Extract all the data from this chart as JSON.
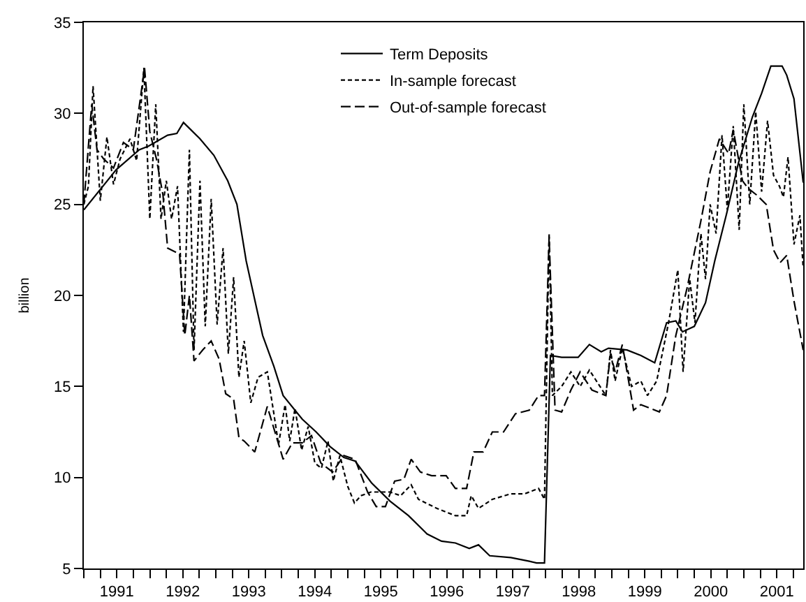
{
  "chart_data": {
    "type": "line",
    "ylabel": "billion",
    "xlim": [
      1991.0,
      2001.9
    ],
    "ylim": [
      5,
      35
    ],
    "xticks": [
      {
        "value": 1991.5,
        "label": "1991"
      },
      {
        "value": 1992.5,
        "label": "1992"
      },
      {
        "value": 1993.5,
        "label": "1993"
      },
      {
        "value": 1994.5,
        "label": "1994"
      },
      {
        "value": 1995.5,
        "label": "1995"
      },
      {
        "value": 1996.5,
        "label": "1996"
      },
      {
        "value": 1997.5,
        "label": "1997"
      },
      {
        "value": 1998.5,
        "label": "1998"
      },
      {
        "value": 1999.5,
        "label": "1999"
      },
      {
        "value": 2000.5,
        "label": "2000"
      },
      {
        "value": 2001.5,
        "label": "2001"
      }
    ],
    "yticks": [
      5,
      10,
      15,
      20,
      25,
      30,
      35
    ],
    "legend": "top",
    "marker": "none",
    "series": [
      {
        "name": "Term Deposits",
        "color": "#000000",
        "line_style": "solid",
        "x": [
          1991.0,
          1991.49,
          1991.84,
          1991.98,
          1992.27,
          1992.41,
          1992.51,
          1992.76,
          1992.97,
          1993.18,
          1993.32,
          1993.46,
          1993.6,
          1993.71,
          1993.88,
          1994.02,
          1994.31,
          1994.52,
          1994.73,
          1994.94,
          1995.11,
          1995.36,
          1995.64,
          1995.92,
          1996.2,
          1996.42,
          1996.63,
          1996.84,
          1996.98,
          1997.15,
          1997.47,
          1997.75,
          1997.86,
          1997.98,
          1998.07,
          1998.24,
          1998.49,
          1998.66,
          1998.84,
          1998.95,
          1999.23,
          1999.44,
          1999.65,
          1999.83,
          1999.97,
          2000.07,
          2000.25,
          2000.42,
          2000.56,
          2000.74,
          2000.92,
          2001.13,
          2001.27,
          2001.41,
          2001.58,
          2001.65,
          2001.76,
          2001.9
        ],
        "values": [
          24.7,
          26.9,
          28.0,
          28.2,
          28.8,
          28.9,
          29.5,
          28.6,
          27.7,
          26.3,
          25.0,
          21.9,
          19.6,
          17.8,
          16.1,
          14.5,
          13.2,
          12.5,
          11.7,
          11.1,
          10.9,
          9.7,
          8.7,
          7.9,
          6.9,
          6.5,
          6.4,
          6.1,
          6.3,
          5.7,
          5.6,
          5.4,
          5.3,
          5.3,
          16.7,
          16.6,
          16.6,
          17.3,
          16.9,
          17.1,
          17.0,
          16.7,
          16.3,
          18.5,
          18.6,
          18.0,
          18.3,
          19.6,
          21.9,
          24.5,
          27.3,
          29.8,
          31.1,
          32.6,
          32.6,
          32.1,
          30.8,
          26.2
        ]
      },
      {
        "name": "In-sample forecast",
        "color": "#000000",
        "line_style": "dotted",
        "x": [
          1991.0,
          1991.07,
          1991.14,
          1991.25,
          1991.35,
          1991.45,
          1991.55,
          1991.7,
          1991.8,
          1991.91,
          1992.0,
          1992.09,
          1992.17,
          1992.25,
          1992.33,
          1992.42,
          1992.51,
          1992.6,
          1992.67,
          1992.76,
          1992.84,
          1992.93,
          1993.02,
          1993.11,
          1993.19,
          1993.27,
          1993.35,
          1993.43,
          1993.53,
          1993.64,
          1993.78,
          1993.88,
          1993.95,
          1994.05,
          1994.12,
          1994.2,
          1994.3,
          1994.4,
          1994.5,
          1994.6,
          1994.7,
          1994.78,
          1994.88,
          1995.0,
          1995.1,
          1995.2,
          1995.35,
          1995.5,
          1995.64,
          1995.8,
          1995.96,
          1996.07,
          1996.35,
          1996.63,
          1996.8,
          1996.87,
          1996.98,
          1997.19,
          1997.47,
          1997.68,
          1997.89,
          1997.98,
          1998.05,
          1998.1,
          1998.24,
          1998.38,
          1998.52,
          1998.66,
          1998.91,
          1998.98,
          1999.05,
          1999.16,
          1999.3,
          1999.44,
          1999.54,
          1999.68,
          1999.86,
          2000.0,
          2000.08,
          2000.18,
          2000.26,
          2000.35,
          2000.42,
          2000.49,
          2000.58,
          2000.67,
          2000.75,
          2000.84,
          2000.93,
          2001.0,
          2001.09,
          2001.18,
          2001.27,
          2001.36,
          2001.45,
          2001.54,
          2001.6,
          2001.67,
          2001.76,
          2001.85,
          2001.9
        ],
        "values": [
          25.0,
          26.0,
          31.5,
          25.2,
          28.7,
          26.1,
          27.5,
          28.6,
          27.4,
          32.5,
          24.2,
          30.5,
          24.2,
          26.3,
          24.2,
          26.0,
          18.0,
          28.0,
          17.0,
          26.3,
          18.3,
          25.3,
          18.4,
          22.6,
          16.8,
          21.0,
          15.5,
          17.5,
          14.1,
          15.5,
          15.8,
          13.5,
          11.8,
          14.0,
          12.0,
          13.8,
          11.5,
          12.8,
          10.8,
          10.5,
          12.0,
          9.8,
          11.2,
          9.5,
          8.6,
          9.0,
          9.2,
          9.2,
          9.2,
          9.0,
          9.6,
          8.8,
          8.3,
          7.9,
          7.9,
          9.0,
          8.3,
          8.8,
          9.1,
          9.1,
          9.4,
          8.8,
          23.4,
          14.5,
          15.0,
          15.8,
          15.0,
          15.9,
          14.5,
          17.0,
          15.3,
          17.1,
          15.0,
          15.3,
          14.5,
          15.3,
          18.5,
          21.4,
          15.8,
          20.9,
          18.5,
          23.4,
          20.9,
          25.0,
          23.4,
          28.8,
          24.7,
          29.3,
          23.6,
          30.5,
          25.0,
          30.1,
          25.7,
          29.6,
          26.6,
          26.0,
          25.4,
          27.6,
          22.8,
          24.4,
          21.5
        ]
      },
      {
        "name": "Out-of-sample forecast",
        "color": "#000000",
        "line_style": "dashed",
        "x": [
          1991.0,
          1991.12,
          1991.2,
          1991.3,
          1991.45,
          1991.6,
          1991.75,
          1991.92,
          1992.0,
          1992.1,
          1992.2,
          1992.27,
          1992.38,
          1992.45,
          1992.53,
          1992.6,
          1992.67,
          1992.8,
          1992.93,
          1993.05,
          1993.15,
          1993.27,
          1993.35,
          1993.43,
          1993.59,
          1993.78,
          1994.02,
          1994.16,
          1994.31,
          1994.45,
          1994.59,
          1994.77,
          1994.94,
          1995.11,
          1995.3,
          1995.43,
          1995.57,
          1995.71,
          1995.85,
          1995.96,
          1996.1,
          1996.27,
          1996.49,
          1996.63,
          1996.8,
          1996.91,
          1997.05,
          1997.19,
          1997.36,
          1997.54,
          1997.75,
          1997.89,
          1997.98,
          1998.05,
          1998.14,
          1998.24,
          1998.38,
          1998.52,
          1998.7,
          1998.91,
          1998.98,
          1999.05,
          1999.16,
          1999.33,
          1999.44,
          1999.58,
          1999.72,
          1999.83,
          1999.97,
          2000.14,
          2000.35,
          2000.49,
          2000.63,
          2000.77,
          2000.84,
          2000.98,
          2001.06,
          2001.2,
          2001.34,
          2001.45,
          2001.55,
          2001.65,
          2001.76,
          2001.9
        ],
        "values": [
          25.0,
          30.5,
          28.0,
          27.5,
          27.0,
          28.4,
          28.0,
          32.5,
          29.0,
          27.5,
          25.5,
          22.6,
          22.4,
          22.3,
          17.8,
          20.0,
          16.4,
          17.0,
          17.5,
          16.5,
          14.6,
          14.3,
          12.2,
          12.0,
          11.4,
          13.9,
          11.0,
          11.9,
          11.9,
          12.3,
          10.8,
          10.3,
          11.2,
          11.0,
          9.2,
          8.4,
          8.4,
          9.8,
          9.9,
          11.0,
          10.3,
          10.1,
          10.1,
          9.4,
          9.4,
          11.4,
          11.4,
          12.5,
          12.5,
          13.5,
          13.7,
          14.5,
          14.5,
          23.2,
          13.7,
          13.6,
          14.8,
          15.8,
          14.8,
          14.5,
          16.8,
          15.8,
          17.3,
          13.7,
          14.0,
          13.8,
          13.6,
          14.5,
          17.8,
          20.4,
          24.1,
          26.8,
          28.6,
          27.8,
          29.1,
          26.3,
          25.9,
          25.5,
          25.0,
          22.5,
          21.8,
          22.2,
          19.7,
          17.0
        ]
      }
    ]
  }
}
